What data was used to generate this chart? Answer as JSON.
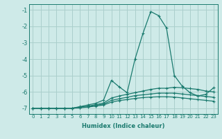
{
  "xlabel": "Humidex (Indice chaleur)",
  "ylabel": "",
  "background_color": "#ceeae8",
  "grid_color": "#aacfcc",
  "line_color": "#1a7a6e",
  "x_values": [
    0,
    1,
    2,
    3,
    4,
    5,
    6,
    7,
    8,
    9,
    10,
    11,
    12,
    13,
    14,
    15,
    16,
    17,
    18,
    19,
    20,
    21,
    22,
    23
  ],
  "series": [
    [
      -7.0,
      -7.0,
      -7.0,
      -7.0,
      -7.0,
      -7.0,
      -6.9,
      -6.8,
      -6.7,
      -6.5,
      -5.3,
      -5.7,
      -6.05,
      -4.0,
      -2.45,
      -1.1,
      -1.35,
      -2.1,
      -5.0,
      -5.65,
      -6.05,
      -6.25,
      -6.15,
      -5.75
    ],
    [
      -7.0,
      -7.0,
      -7.0,
      -7.0,
      -7.0,
      -7.0,
      -6.93,
      -6.88,
      -6.78,
      -6.68,
      -6.38,
      -6.25,
      -6.15,
      -6.05,
      -5.95,
      -5.85,
      -5.78,
      -5.78,
      -5.72,
      -5.75,
      -5.8,
      -5.85,
      -5.95,
      -6.0
    ],
    [
      -7.0,
      -7.0,
      -7.0,
      -7.0,
      -7.0,
      -7.0,
      -6.95,
      -6.9,
      -6.83,
      -6.75,
      -6.52,
      -6.42,
      -6.33,
      -6.23,
      -6.18,
      -6.13,
      -6.08,
      -6.08,
      -6.08,
      -6.13,
      -6.18,
      -6.23,
      -6.28,
      -6.33
    ],
    [
      -7.0,
      -7.0,
      -7.0,
      -7.0,
      -7.0,
      -7.0,
      -6.97,
      -6.93,
      -6.87,
      -6.8,
      -6.63,
      -6.53,
      -6.47,
      -6.4,
      -6.35,
      -6.32,
      -6.3,
      -6.3,
      -6.32,
      -6.37,
      -6.42,
      -6.47,
      -6.52,
      -6.57
    ]
  ],
  "ylim": [
    -7.35,
    -0.65
  ],
  "xlim": [
    -0.5,
    23.5
  ],
  "yticks": [
    -7,
    -6,
    -5,
    -4,
    -3,
    -2,
    -1
  ],
  "xticks": [
    0,
    1,
    2,
    3,
    4,
    5,
    6,
    7,
    8,
    9,
    10,
    11,
    12,
    13,
    14,
    15,
    16,
    17,
    18,
    19,
    20,
    21,
    22,
    23
  ],
  "marker": "+",
  "markersize": 3.5,
  "linewidth": 0.9
}
